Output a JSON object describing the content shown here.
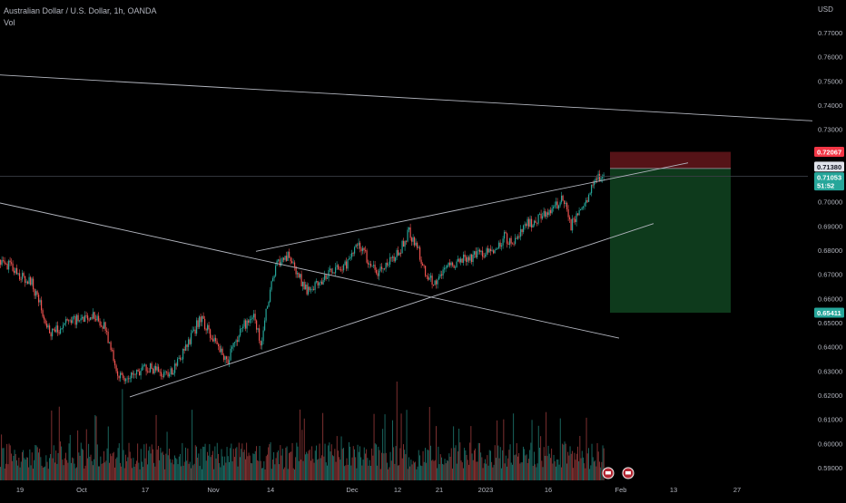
{
  "header": {
    "symbol_line": "Australian Dollar / U.S. Dollar, 1h, OANDA",
    "volume_label": "Vol"
  },
  "currency_label": "USD",
  "colors": {
    "up": "#26a69a",
    "down": "#ef5350",
    "up_volume": "#1c6f68",
    "down_volume": "#8a3535",
    "trendline": "#b2b5be",
    "stop_zone": "#5a1418",
    "target_zone": "#0f3d1e",
    "axis_text": "#b2b5be",
    "stop_badge": "#f23645",
    "price_badge": "#26a69a",
    "entry_badge": "#e0e3eb"
  },
  "chart_data": {
    "type": "candlestick",
    "title": "Australian Dollar / U.S. Dollar, 1h, OANDA",
    "ylabel": "USD",
    "ylim": [
      0.5855,
      0.7775
    ],
    "y_ticks": [
      0.59,
      0.6,
      0.61,
      0.62,
      0.63,
      0.64,
      0.65,
      0.66,
      0.67,
      0.68,
      0.69,
      0.7,
      0.71,
      0.72,
      0.73,
      0.74,
      0.75,
      0.76,
      0.77
    ],
    "x_ticks": [
      "19",
      "Oct",
      "17",
      "Nov",
      "14",
      "Dec",
      "12",
      "21",
      "2023",
      "16",
      "Feb",
      "13",
      "27"
    ],
    "price_path": [
      [
        0,
        0.676
      ],
      [
        35,
        0.666
      ],
      [
        55,
        0.645
      ],
      [
        75,
        0.65
      ],
      [
        100,
        0.653
      ],
      [
        115,
        0.648
      ],
      [
        130,
        0.628
      ],
      [
        140,
        0.626
      ],
      [
        160,
        0.632
      ],
      [
        175,
        0.63
      ],
      [
        185,
        0.628
      ],
      [
        205,
        0.64
      ],
      [
        220,
        0.652
      ],
      [
        235,
        0.643
      ],
      [
        250,
        0.634
      ],
      [
        265,
        0.648
      ],
      [
        280,
        0.652
      ],
      [
        287,
        0.641
      ],
      [
        295,
        0.66
      ],
      [
        305,
        0.675
      ],
      [
        318,
        0.678
      ],
      [
        330,
        0.668
      ],
      [
        340,
        0.662
      ],
      [
        355,
        0.668
      ],
      [
        370,
        0.672
      ],
      [
        380,
        0.674
      ],
      [
        395,
        0.682
      ],
      [
        405,
        0.676
      ],
      [
        415,
        0.67
      ],
      [
        430,
        0.676
      ],
      [
        440,
        0.68
      ],
      [
        450,
        0.688
      ],
      [
        460,
        0.68
      ],
      [
        470,
        0.668
      ],
      [
        480,
        0.666
      ],
      [
        490,
        0.672
      ],
      [
        505,
        0.676
      ],
      [
        520,
        0.677
      ],
      [
        535,
        0.68
      ],
      [
        545,
        0.678
      ],
      [
        555,
        0.686
      ],
      [
        565,
        0.682
      ],
      [
        575,
        0.69
      ],
      [
        590,
        0.692
      ],
      [
        605,
        0.696
      ],
      [
        620,
        0.702
      ],
      [
        628,
        0.69
      ],
      [
        640,
        0.696
      ],
      [
        650,
        0.704
      ],
      [
        657,
        0.71
      ],
      [
        665,
        0.711
      ]
    ],
    "volume_note": "hourly volume bars",
    "trendlines": [
      {
        "from": [
          0,
          0.7525
        ],
        "to": [
          895,
          0.7335
        ]
      },
      {
        "from": [
          0,
          0.6995
        ],
        "to": [
          682,
          0.6436
        ]
      },
      {
        "from": [
          282,
          0.6795
        ],
        "to": [
          758,
          0.7161
        ]
      },
      {
        "from": [
          143,
          0.6193
        ],
        "to": [
          720,
          0.691
        ]
      }
    ],
    "position": {
      "type": "short",
      "entry": 0.7138,
      "stop": 0.72067,
      "target": 0.65411,
      "current": 0.71053,
      "countdown": "51:52"
    },
    "price_badges": [
      {
        "value": "0.72067",
        "kind": "stop"
      },
      {
        "value": "0.71380",
        "kind": "entry"
      },
      {
        "value": "0.71053",
        "kind": "current"
      },
      {
        "value": "51:52",
        "kind": "countdown"
      },
      {
        "value": "0.65411",
        "kind": "target"
      }
    ]
  }
}
